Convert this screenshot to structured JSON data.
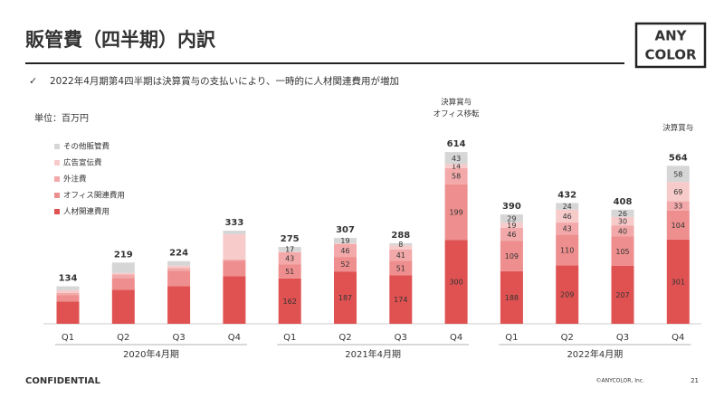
{
  "header": {
    "title": "販管費（四半期）内訳",
    "note": "2022年4月期第4四半期は決算賞与の支払いにより、一時的に人材関連費用が増加",
    "logo_line1": "ANY",
    "logo_line2": "COLOR"
  },
  "footer": {
    "confidential": "CONFIDENTIAL",
    "copyright": "©ANYCOLOR, Inc.",
    "page": "21"
  },
  "chart_data": {
    "type": "stacked_bar",
    "unit_label": "単位：百万円",
    "categories": [
      "Q1",
      "Q2",
      "Q3",
      "Q4",
      "Q1",
      "Q2",
      "Q3",
      "Q4",
      "Q1",
      "Q2",
      "Q3",
      "Q4"
    ],
    "groups": [
      {
        "label": "2020年4月期",
        "span": [
          0,
          3
        ]
      },
      {
        "label": "2021年4月期",
        "span": [
          4,
          7
        ]
      },
      {
        "label": "2022年4月期",
        "span": [
          8,
          11
        ]
      }
    ],
    "ylim": [
      0,
      650
    ],
    "series": [
      {
        "name": "人材関連費用",
        "color": "#e05252",
        "values": [
          80,
          122,
          135,
          170,
          162,
          187,
          174,
          300,
          188,
          209,
          207,
          301
        ],
        "value_labels": [
          null,
          null,
          null,
          null,
          "162",
          "187",
          "174",
          "300",
          "188",
          "209",
          "207",
          "301"
        ]
      },
      {
        "name": "オフィス関連費用",
        "color": "#ee8e8e",
        "values": [
          22,
          42,
          55,
          55,
          51,
          52,
          51,
          199,
          109,
          110,
          105,
          104
        ],
        "value_labels": [
          null,
          null,
          null,
          null,
          "51",
          "52",
          "51",
          "199",
          "109",
          "110",
          "105",
          "104"
        ]
      },
      {
        "name": "外注費",
        "color": "#f3a9a9",
        "values": [
          8,
          13,
          10,
          5,
          43,
          46,
          41,
          58,
          46,
          43,
          40,
          33
        ],
        "value_labels": [
          null,
          null,
          null,
          null,
          "43",
          "46",
          "41",
          "58",
          "46",
          "43",
          "40",
          "33"
        ]
      },
      {
        "name": "広告宣伝費",
        "color": "#f8cbcb",
        "values": [
          10,
          5,
          8,
          90,
          2,
          3,
          14,
          14,
          19,
          46,
          30,
          69
        ],
        "value_labels": [
          null,
          null,
          null,
          null,
          null,
          null,
          null,
          "14",
          "19",
          "46",
          "30",
          "69"
        ]
      },
      {
        "name": "その他販管費",
        "color": "#d6d6d6",
        "values": [
          14,
          37,
          16,
          13,
          17,
          19,
          8,
          43,
          29,
          24,
          26,
          58
        ],
        "value_labels": [
          null,
          null,
          null,
          null,
          "17",
          "19",
          "8",
          "43",
          "29",
          "24",
          "26",
          "58"
        ]
      }
    ],
    "totals": [
      134,
      219,
      224,
      333,
      275,
      307,
      288,
      614,
      390,
      432,
      408,
      564
    ],
    "annotations": [
      {
        "index": 7,
        "lines": [
          "決算賞与",
          "オフィス移転"
        ]
      },
      {
        "index": 11,
        "lines": [
          "決算賞与"
        ]
      }
    ]
  }
}
